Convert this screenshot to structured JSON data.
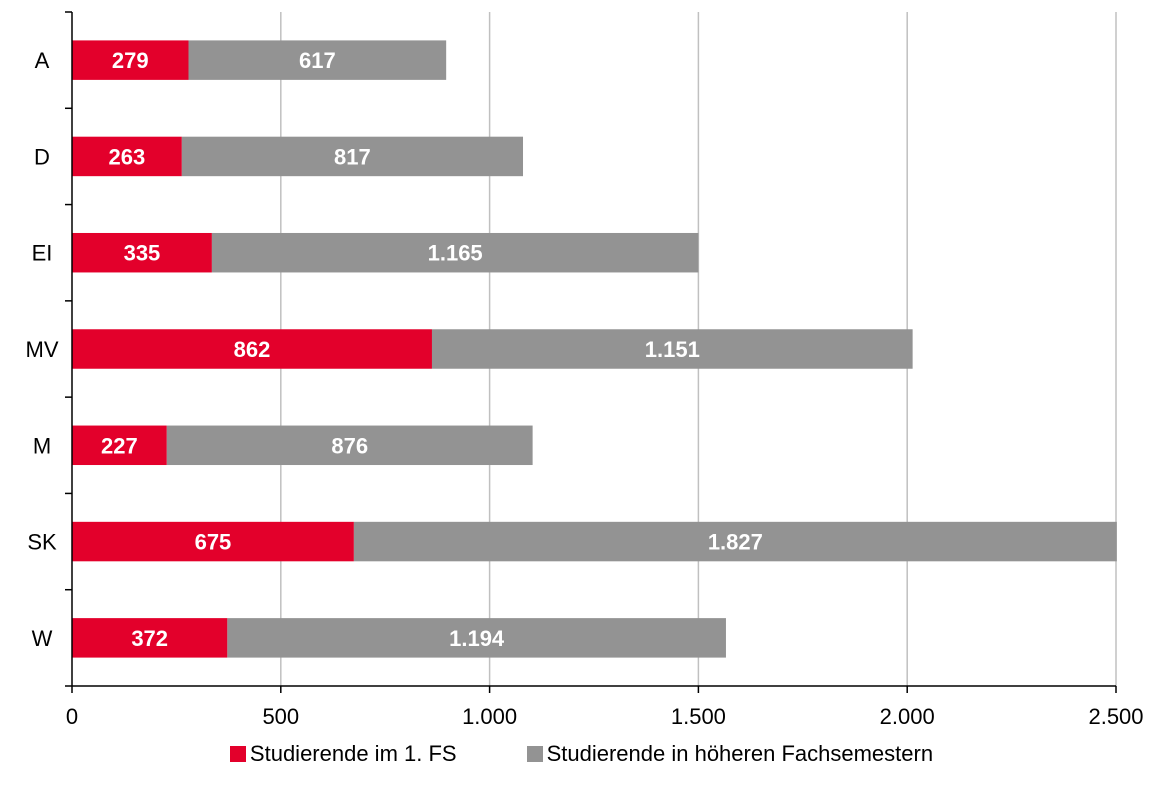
{
  "chart_data": {
    "type": "bar",
    "orientation": "horizontal",
    "stacked": true,
    "categories": [
      "A",
      "D",
      "EI",
      "MV",
      "M",
      "SK",
      "W"
    ],
    "series": [
      {
        "name": "Studierende im 1. FS",
        "color": "#e3002b",
        "values": [
          279,
          263,
          335,
          862,
          227,
          675,
          372
        ],
        "labels": [
          "279",
          "263",
          "335",
          "862",
          "227",
          "675",
          "372"
        ]
      },
      {
        "name": "Studierende in höheren Fachsemestern",
        "color": "#939393",
        "values": [
          617,
          817,
          1165,
          1151,
          876,
          1827,
          1194
        ],
        "labels": [
          "617",
          "817",
          "1.165",
          "1.151",
          "876",
          "1.827",
          "1.194"
        ]
      }
    ],
    "xlim": [
      0,
      2500
    ],
    "x_ticks": [
      0,
      500,
      1000,
      1500,
      2000,
      2500
    ],
    "x_tick_labels": [
      "0",
      "500",
      "1.000",
      "1.500",
      "2.000",
      "2.500"
    ],
    "title": "",
    "xlabel": "",
    "ylabel": "",
    "grid": "vertical",
    "legend": "bottom"
  }
}
